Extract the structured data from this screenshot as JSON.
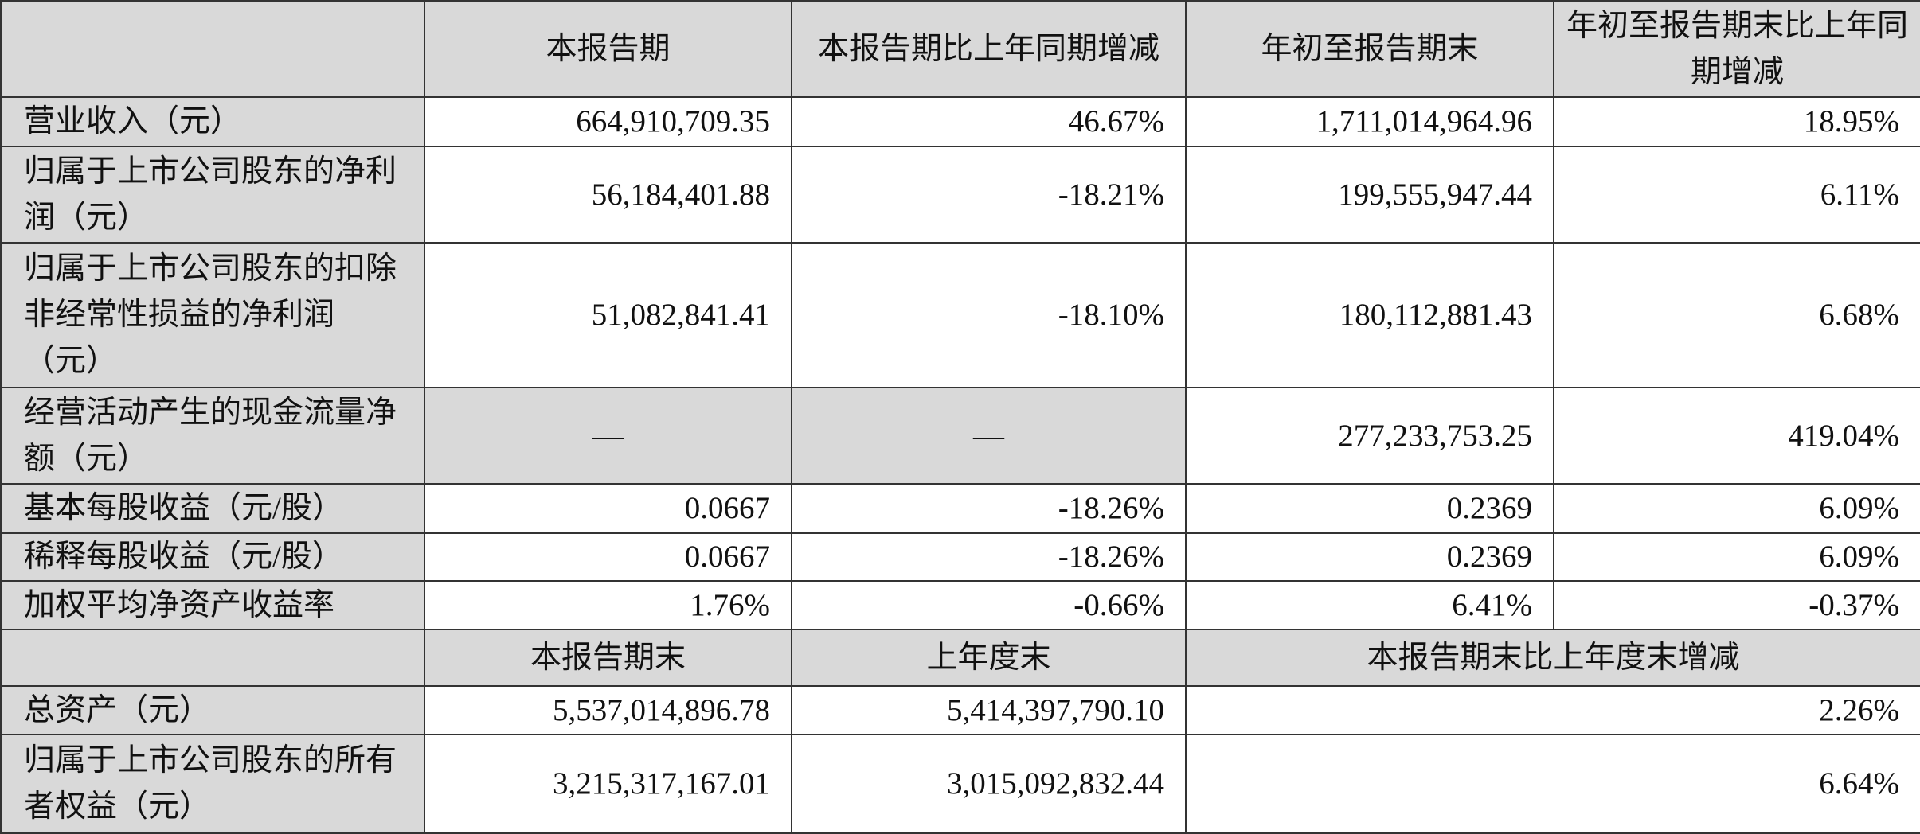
{
  "header1": [
    "",
    "本报告期",
    "本报告期比上年同期增减",
    "年初至报告期末",
    "年初至报告期末比上年同期增减"
  ],
  "rows1": [
    {
      "label": "营业收入（元）",
      "values": [
        "664,910,709.35",
        "46.67%",
        "1,711,014,964.96",
        "18.95%"
      ]
    },
    {
      "label": "归属于上市公司股东的净利润（元）",
      "values": [
        "56,184,401.88",
        "-18.21%",
        "199,555,947.44",
        "6.11%"
      ]
    },
    {
      "label": "归属于上市公司股东的扣除非经常性损益的净利润（元）",
      "values": [
        "51,082,841.41",
        "-18.10%",
        "180,112,881.43",
        "6.68%"
      ]
    },
    {
      "label": "经营活动产生的现金流量净额（元）",
      "values": [
        "—",
        "—",
        "277,233,753.25",
        "419.04%"
      ]
    },
    {
      "label": "基本每股收益（元/股）",
      "values": [
        "0.0667",
        "-18.26%",
        "0.2369",
        "6.09%"
      ]
    },
    {
      "label": "稀释每股收益（元/股）",
      "values": [
        "0.0667",
        "-18.26%",
        "0.2369",
        "6.09%"
      ]
    },
    {
      "label": "加权平均净资产收益率",
      "values": [
        "1.76%",
        "-0.66%",
        "6.41%",
        "-0.37%"
      ]
    }
  ],
  "header2": [
    "",
    "本报告期末",
    "上年度末",
    "本报告期末比上年度末增减"
  ],
  "rows2": [
    {
      "label": "总资产（元）",
      "values": [
        "5,537,014,896.78",
        "5,414,397,790.10",
        "2.26%"
      ]
    },
    {
      "label": "归属于上市公司股东的所有者权益（元）",
      "values": [
        "3,215,317,167.01",
        "3,015,092,832.44",
        "6.64%"
      ]
    }
  ],
  "colors": {
    "header_bg": "#d9d9d9",
    "border": "#333333"
  }
}
